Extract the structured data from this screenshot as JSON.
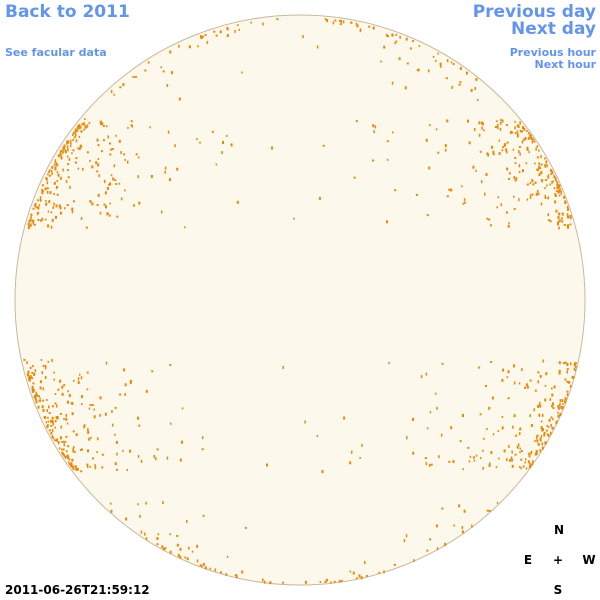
{
  "nav": {
    "back_year": "Back to 2011",
    "facular_data": "See facular data",
    "previous_day": "Previous day",
    "next_day": "Next day",
    "previous_hour": "Previous hour",
    "next_hour": "Next hour"
  },
  "timestamp": "2011-06-26T21:59:12",
  "compass": {
    "north": "N",
    "east": "E",
    "center": "+",
    "west": "W",
    "south": "S"
  }
}
